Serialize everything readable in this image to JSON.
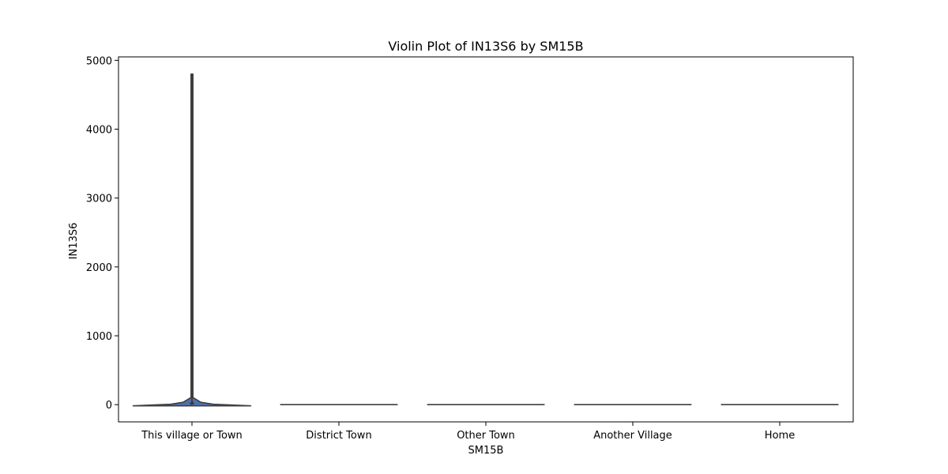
{
  "chart_data": {
    "type": "violin",
    "title": "Violin Plot of IN13S6 by SM15B",
    "xlabel": "SM15B",
    "ylabel": "IN13S6",
    "categories": [
      "This village or Town",
      "District Town",
      "Other Town",
      "Another Village",
      "Home"
    ],
    "ylim": [
      -250,
      5050
    ],
    "yticks": [
      0,
      1000,
      2000,
      3000,
      4000,
      5000
    ],
    "grid": false,
    "series": [
      {
        "category": "This village or Town",
        "min": 0,
        "max": 4800,
        "median": 20,
        "q1": 5,
        "q3": 35
      },
      {
        "category": "District Town",
        "min": 0,
        "max": 0,
        "median": 0,
        "q1": 0,
        "q3": 0
      },
      {
        "category": "Other Town",
        "min": 0,
        "max": 0,
        "median": 0,
        "q1": 0,
        "q3": 0
      },
      {
        "category": "Another Village",
        "min": 0,
        "max": 0,
        "median": 0,
        "q1": 0,
        "q3": 0
      },
      {
        "category": "Home",
        "min": 0,
        "max": 0,
        "median": 0,
        "q1": 0,
        "q3": 0
      }
    ],
    "colors": {
      "fill": "#4c72b0",
      "edge": "#3f3f3f",
      "axis": "#000000"
    }
  }
}
